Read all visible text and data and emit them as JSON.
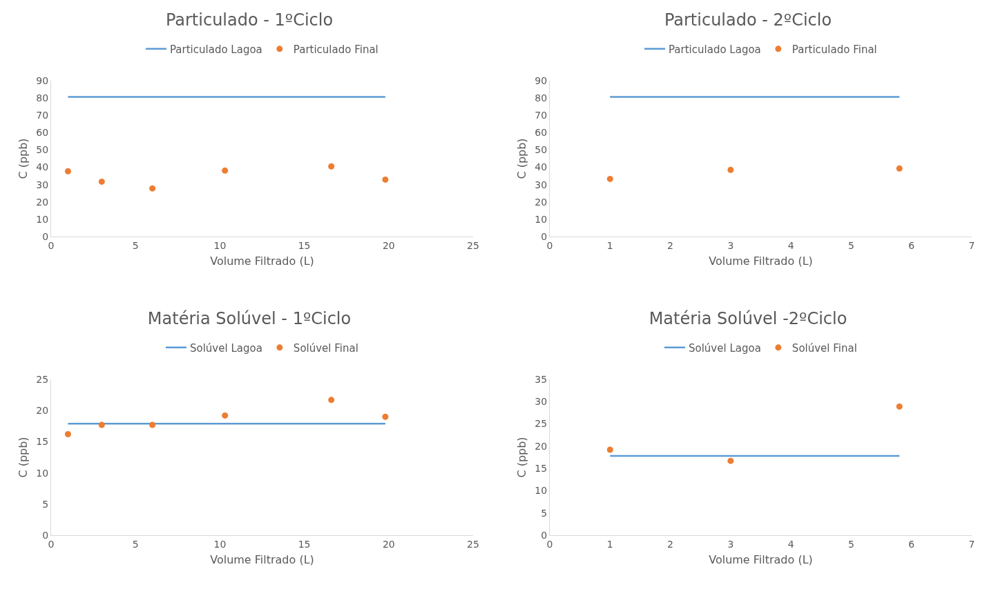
{
  "chart_data": [
    {
      "type": "scatter",
      "title": "Particulado - 1ºCiclo",
      "xlabel": "Volume Filtrado (L)",
      "ylabel": "C (ppb)",
      "xlim": [
        0,
        25
      ],
      "xticks": [
        0,
        5,
        10,
        15,
        20,
        25
      ],
      "ylim": [
        0,
        90
      ],
      "yticks": [
        0,
        10,
        20,
        30,
        40,
        50,
        60,
        70,
        80,
        90
      ],
      "grid": false,
      "legend": "top",
      "series": [
        {
          "name": "Particulado Lagoa",
          "type": "line",
          "color": "#5b9bd5",
          "x": [
            1,
            19.8
          ],
          "values": [
            80.6,
            80.6
          ]
        },
        {
          "name": "Particulado Final",
          "type": "scatter",
          "marker": "circle",
          "color": "#ed7d31",
          "x": [
            1,
            3,
            6,
            10.3,
            16.6,
            19.8
          ],
          "values": [
            37.7,
            31.7,
            27.8,
            38.1,
            40.5,
            32.9
          ]
        }
      ]
    },
    {
      "type": "scatter",
      "title": "Particulado - 2ºCiclo",
      "xlabel": "Volume Filtrado (L)",
      "ylabel": "C (ppb)",
      "xlim": [
        0,
        7
      ],
      "xticks": [
        0,
        1,
        2,
        3,
        4,
        5,
        6,
        7
      ],
      "ylim": [
        0,
        90
      ],
      "yticks": [
        0,
        10,
        20,
        30,
        40,
        50,
        60,
        70,
        80,
        90
      ],
      "grid": false,
      "legend": "top",
      "series": [
        {
          "name": "Particulado Lagoa",
          "type": "line",
          "color": "#5b9bd5",
          "x": [
            1,
            5.8
          ],
          "values": [
            80.6,
            80.6
          ]
        },
        {
          "name": "Particulado Final",
          "type": "scatter",
          "marker": "circle",
          "color": "#ed7d31",
          "x": [
            1,
            3,
            5.8
          ],
          "values": [
            33.3,
            38.5,
            39.3
          ]
        }
      ]
    },
    {
      "type": "scatter",
      "title": "Matéria Solúvel - 1ºCiclo",
      "xlabel": "Volume Filtrado (L)",
      "ylabel": "C (ppb)",
      "xlim": [
        0,
        25
      ],
      "xticks": [
        0,
        5,
        10,
        15,
        20,
        25
      ],
      "ylim": [
        0,
        25
      ],
      "yticks": [
        0,
        5,
        10,
        15,
        20,
        25
      ],
      "grid": false,
      "legend": "top",
      "series": [
        {
          "name": "Solúvel Lagoa",
          "type": "line",
          "color": "#5b9bd5",
          "x": [
            1,
            19.8
          ],
          "values": [
            17.9,
            17.9
          ]
        },
        {
          "name": "Solúvel Final",
          "type": "scatter",
          "marker": "circle",
          "color": "#ed7d31",
          "x": [
            1,
            3,
            6,
            10.3,
            16.6,
            19.8
          ],
          "values": [
            16.2,
            17.7,
            17.7,
            19.2,
            21.7,
            19.0
          ]
        }
      ]
    },
    {
      "type": "scatter",
      "title": "Matéria Solúvel -2ºCiclo",
      "xlabel": "Volume Filtrado (L)",
      "ylabel": "C (ppb)",
      "xlim": [
        0,
        7
      ],
      "xticks": [
        0,
        1,
        2,
        3,
        4,
        5,
        6,
        7
      ],
      "ylim": [
        0,
        35
      ],
      "yticks": [
        0,
        5,
        10,
        15,
        20,
        25,
        30,
        35
      ],
      "grid": false,
      "legend": "top",
      "series": [
        {
          "name": "Solúvel Lagoa",
          "type": "line",
          "color": "#5b9bd5",
          "x": [
            1,
            5.8
          ],
          "values": [
            17.8,
            17.8
          ]
        },
        {
          "name": "Solúvel Final",
          "type": "scatter",
          "marker": "circle",
          "color": "#ed7d31",
          "x": [
            1,
            3,
            5.8
          ],
          "values": [
            19.2,
            16.7,
            28.9
          ]
        }
      ]
    }
  ]
}
